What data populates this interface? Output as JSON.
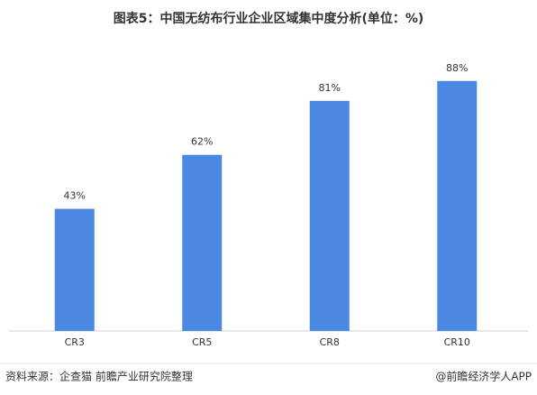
{
  "chart_data": {
    "type": "bar",
    "title": "图表5：中国无纺布行业企业区域集中度分析(单位：%)",
    "categories": [
      "CR3",
      "CR5",
      "CR8",
      "CR10"
    ],
    "values": [
      43,
      62,
      81,
      88
    ],
    "value_labels": [
      "43%",
      "62%",
      "81%",
      "88%"
    ],
    "color": "#4a88e2",
    "source": "资料来源：企查猫 前瞻产业研究院整理",
    "credit": "@前瞻经济学人APP"
  }
}
